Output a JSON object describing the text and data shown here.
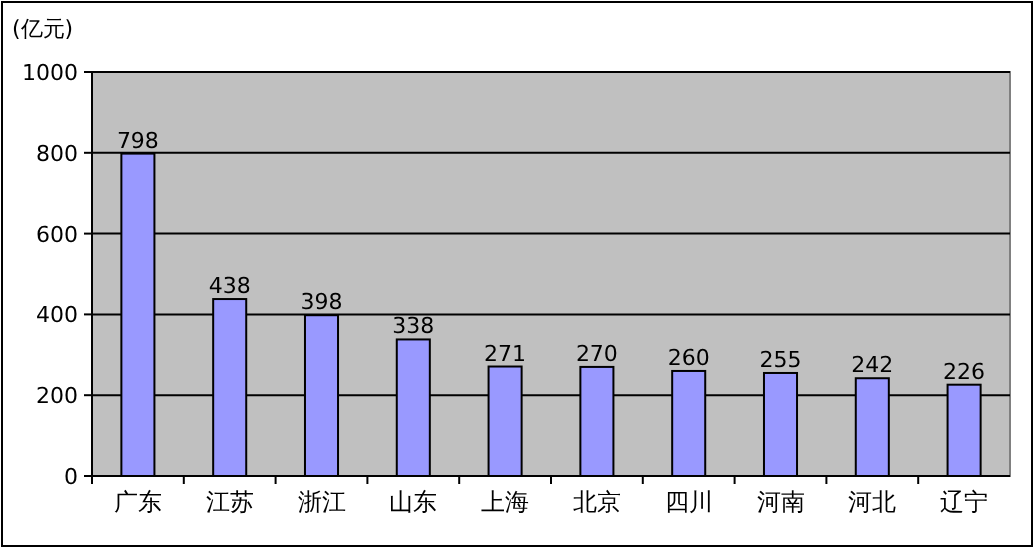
{
  "chart_data": {
    "type": "bar",
    "ylabel": "(亿元)",
    "categories": [
      "广东",
      "江苏",
      "浙江",
      "山东",
      "上海",
      "北京",
      "四川",
      "河南",
      "河北",
      "辽宁"
    ],
    "values": [
      798,
      438,
      398,
      338,
      271,
      270,
      260,
      255,
      242,
      226
    ],
    "color": "#9999ff",
    "ylim": [
      0,
      1000
    ],
    "yticks": [
      0,
      200,
      400,
      600,
      800,
      1000
    ],
    "grid": "y",
    "data_labels": true
  }
}
